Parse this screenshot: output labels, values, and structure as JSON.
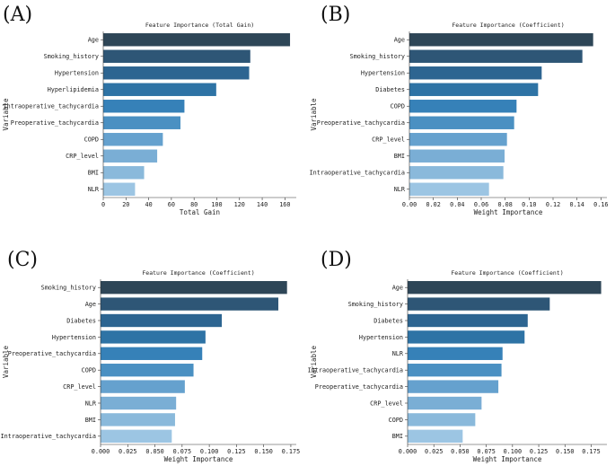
{
  "chart_data": [
    {
      "panel": "(A)",
      "type": "bar",
      "orientation": "horizontal",
      "title": "Feature Importance (Total Gain)",
      "xlabel": "Total Gain",
      "ylabel": "Variable",
      "xlim": [
        0,
        170
      ],
      "xticks": [
        "0",
        "20",
        "40",
        "60",
        "80",
        "100",
        "120",
        "140",
        "160"
      ],
      "tick_values": [
        0,
        20,
        40,
        60,
        80,
        100,
        120,
        140,
        160
      ],
      "categories": [
        "Age",
        "Smoking_history",
        "Hypertension",
        "Hyperlipidemia",
        "Intraoperative_tachycardia",
        "Preoperative_tachycardia",
        "COPD",
        "CRP_level",
        "BMI",
        "NLR"
      ],
      "values": [
        164.5,
        129.5,
        128.5,
        99.5,
        71.5,
        68.0,
        52.5,
        47.5,
        36.0,
        28.0
      ]
    },
    {
      "panel": "(B)",
      "type": "bar",
      "orientation": "horizontal",
      "title": "Feature Importance (Coefficient)",
      "xlabel": "Weight Importance",
      "ylabel": "Variable",
      "xlim": [
        0,
        0.165
      ],
      "xticks": [
        "0.00",
        "0.02",
        "0.04",
        "0.06",
        "0.08",
        "0.10",
        "0.12",
        "0.14",
        "0.16"
      ],
      "tick_values": [
        0,
        0.02,
        0.04,
        0.06,
        0.08,
        0.1,
        0.12,
        0.14,
        0.16
      ],
      "categories": [
        "Age",
        "Smoking_history",
        "Hypertension",
        "Diabetes",
        "COPD",
        "Preoperative_tachycardia",
        "CRP_level",
        "BMI",
        "Intraoperative_tachycardia",
        "NLR"
      ],
      "values": [
        0.1535,
        0.1445,
        0.1105,
        0.1075,
        0.0895,
        0.0875,
        0.0815,
        0.0795,
        0.0785,
        0.0665
      ]
    },
    {
      "panel": "(C)",
      "type": "bar",
      "orientation": "horizontal",
      "title": "Feature Importance (Coefficient)",
      "xlabel": "Weight Importance",
      "ylabel": "Variable",
      "xlim": [
        0,
        0.18
      ],
      "xticks": [
        "0.000",
        "0.025",
        "0.050",
        "0.075",
        "0.100",
        "0.125",
        "0.150",
        "0.175"
      ],
      "tick_values": [
        0,
        0.025,
        0.05,
        0.075,
        0.1,
        0.125,
        0.15,
        0.175
      ],
      "categories": [
        "Smoking_history",
        "Age",
        "Diabetes",
        "Hypertension",
        "Preoperative_tachycardia",
        "COPD",
        "CRP_level",
        "NLR",
        "BMI",
        "Intraoperative_tachycardia"
      ],
      "values": [
        0.1715,
        0.1635,
        0.1115,
        0.0965,
        0.0935,
        0.0855,
        0.0775,
        0.0695,
        0.0685,
        0.0655
      ]
    },
    {
      "panel": "(D)",
      "type": "bar",
      "orientation": "horizontal",
      "title": "Feature Importance (Coefficient)",
      "xlabel": "Weight Importance",
      "ylabel": "Variable",
      "xlim": [
        0,
        0.19
      ],
      "xticks": [
        "0.000",
        "0.025",
        "0.050",
        "0.075",
        "0.100",
        "0.125",
        "0.150",
        "0.175"
      ],
      "tick_values": [
        0,
        0.025,
        0.05,
        0.075,
        0.1,
        0.125,
        0.15,
        0.175
      ],
      "categories": [
        "Age",
        "Smoking_history",
        "Diabetes",
        "Hypertension",
        "NLR",
        "Intraoperative_tachycardia",
        "Preoperative_tachycardia",
        "CRP_level",
        "COPD",
        "BMI"
      ],
      "values": [
        0.1845,
        0.1355,
        0.1145,
        0.1115,
        0.0905,
        0.0895,
        0.0865,
        0.0705,
        0.0645,
        0.0525
      ]
    }
  ],
  "palette": [
    "#2e4657",
    "#2e5676",
    "#2d6591",
    "#2e73a5",
    "#3681b8",
    "#4a90c2",
    "#65a1ce",
    "#7aaed5",
    "#8ab9db",
    "#9cc5e3"
  ]
}
